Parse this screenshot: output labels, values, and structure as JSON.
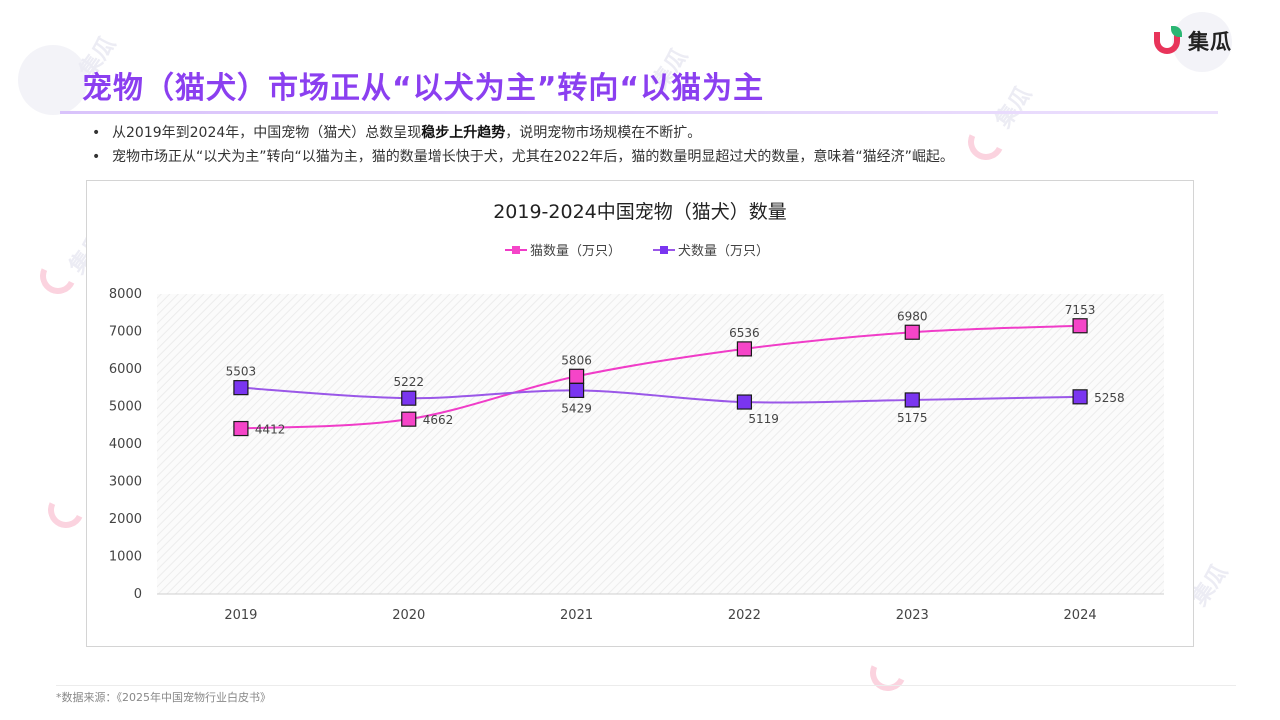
{
  "brand": {
    "logo_text": "集瓜"
  },
  "header": {
    "title": "宠物（猫犬）市场正从“以犬为主”转向“以猫为主"
  },
  "bullets": {
    "b1_pre": "从2019年到2024年，中国宠物（猫犬）总数呈现",
    "b1_bold": "稳步上升趋势",
    "b1_post": "，说明宠物市场规模在不断扩。",
    "b2": "宠物市场正从“以犬为主”转向“以猫为主，猫的数量增长快于犬，尤其在2022年后，猫的数量明显超过犬的数量，意味着“猫经济”崛起。"
  },
  "footer": {
    "source": "*数据来源：《2025年中国宠物行业白皮书》"
  },
  "colors": {
    "accent": "#8b3ff0",
    "cat": "#f03cc8",
    "dog": "#8a4ee8"
  },
  "chart_data": {
    "type": "line",
    "title": "2019-2024中国宠物（猫犬）数量",
    "categories": [
      "2019",
      "2020",
      "2021",
      "2022",
      "2023",
      "2024"
    ],
    "series": [
      {
        "name": "猫数量（万只）",
        "values": [
          4412,
          4662,
          5806,
          6536,
          6980,
          7153
        ],
        "color": "#f03cc8",
        "fill": "#f545c8",
        "labels": [
          "below-right",
          "below-right",
          "above",
          "above",
          "above",
          "above"
        ]
      },
      {
        "name": "犬数量（万只）",
        "values": [
          5503,
          5222,
          5429,
          5119,
          5175,
          5258
        ],
        "color": "#9a57e8",
        "fill": "#7a35f0",
        "labels": [
          "above",
          "above",
          "below",
          "below-right",
          "below",
          "right"
        ]
      }
    ],
    "ylim": [
      0,
      8000
    ],
    "yticks": [
      0,
      1000,
      2000,
      3000,
      4000,
      5000,
      6000,
      7000,
      8000
    ],
    "legend": "top-center",
    "marker": "square",
    "smooth": true,
    "plot_background": "hatched"
  }
}
